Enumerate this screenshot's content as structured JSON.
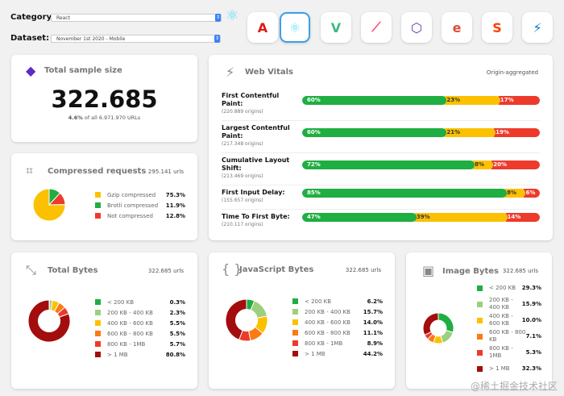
{
  "filters": {
    "category_label": "Category:",
    "category_value": "React",
    "dataset_label": "Dataset:",
    "dataset_value": "November 1st 2020 - Mobile"
  },
  "frameworks": [
    {
      "name": "Angular",
      "glyph": "A",
      "color": "#dd1b16"
    },
    {
      "name": "React",
      "glyph": "⚛",
      "color": "#61dafb",
      "selected": true
    },
    {
      "name": "Vue",
      "glyph": "V",
      "color": "#41b883"
    },
    {
      "name": "Polymer",
      "glyph": "⟋",
      "color": "#ff4470"
    },
    {
      "name": "Preact",
      "glyph": "⬡",
      "color": "#673ab8"
    },
    {
      "name": "Ember",
      "glyph": "e",
      "color": "#e04e39"
    },
    {
      "name": "Svelte",
      "glyph": "S",
      "color": "#ff3e00"
    },
    {
      "name": "AMP",
      "glyph": "⚡",
      "color": "#0379c4"
    }
  ],
  "sample": {
    "title": "Total sample size",
    "value": "322.685",
    "pct": "4.6%",
    "sub": "of all 6.971.970 URLs"
  },
  "vitals": {
    "title": "Web Vitals",
    "note": "Origin-aggregated",
    "colors": [
      "#1fae42",
      "#fbc100",
      "#ee3a2b"
    ],
    "rows": [
      {
        "name": "First Contentful Paint:",
        "origins": "(220.889 origins)",
        "values": [
          60,
          23,
          17
        ]
      },
      {
        "name": "Largest Contentful Paint:",
        "origins": "(217.348 origins)",
        "values": [
          60,
          21,
          19
        ]
      },
      {
        "name": "Cumulative Layout Shift:",
        "origins": "(213.469 origins)",
        "values": [
          72,
          8,
          20
        ]
      },
      {
        "name": "First Input Delay:",
        "origins": "(155.657 origins)",
        "values": [
          85,
          8,
          6
        ]
      },
      {
        "name": "Time To First Byte:",
        "origins": "(210.117 origins)",
        "values": [
          47,
          39,
          14
        ]
      }
    ]
  },
  "compressed": {
    "title": "Compressed requests",
    "count": "295.141 urls",
    "items": [
      {
        "label": "Gzip compressed",
        "value": "75.3%",
        "pct": 75.3,
        "color": "#fbc100"
      },
      {
        "label": "Brotli compressed",
        "value": "11.9%",
        "pct": 11.9,
        "color": "#1fae42"
      },
      {
        "label": "Not compressed",
        "value": "12.8%",
        "pct": 12.8,
        "color": "#ee3a2b"
      }
    ]
  },
  "size_colors": [
    "#1fae42",
    "#9ccf7e",
    "#fbc100",
    "#fb7a12",
    "#ee3a2b",
    "#a40d0d"
  ],
  "total_bytes": {
    "title": "Total Bytes",
    "count": "322.685 urls",
    "items": [
      {
        "label": "< 200 KB",
        "value": "0.3%",
        "pct": 0.3
      },
      {
        "label": "200 KB - 400 KB",
        "value": "2.3%",
        "pct": 2.3
      },
      {
        "label": "400 KB - 600 KB",
        "value": "5.5%",
        "pct": 5.5
      },
      {
        "label": "600 KB - 800 KB",
        "value": "5.5%",
        "pct": 5.5
      },
      {
        "label": "800 KB - 1MB",
        "value": "5.7%",
        "pct": 5.7
      },
      {
        "label": "> 1 MB",
        "value": "80.8%",
        "pct": 80.8
      }
    ]
  },
  "js_bytes": {
    "title": "JavaScript Bytes",
    "count": "322.685 urls",
    "items": [
      {
        "label": "< 200 KB",
        "value": "6.2%",
        "pct": 6.2
      },
      {
        "label": "200 KB - 400 KB",
        "value": "15.7%",
        "pct": 15.7
      },
      {
        "label": "400 KB - 600 KB",
        "value": "14.0%",
        "pct": 14.0
      },
      {
        "label": "600 KB - 800 KB",
        "value": "11.1%",
        "pct": 11.1
      },
      {
        "label": "800 KB - 1MB",
        "value": "8.9%",
        "pct": 8.9
      },
      {
        "label": "> 1 MB",
        "value": "44.2%",
        "pct": 44.2
      }
    ]
  },
  "image_bytes": {
    "title": "Image Bytes",
    "count": "322.685 urls",
    "items": [
      {
        "label": "< 200 KB",
        "value": "29.3%",
        "pct": 29.3
      },
      {
        "label": "200 KB - 400 KB",
        "value": "15.9%",
        "pct": 15.9
      },
      {
        "label": "400 KB - 600 KB",
        "value": "10.0%",
        "pct": 10.0
      },
      {
        "label": "600 KB - 800 KB",
        "value": "7.1%",
        "pct": 7.1
      },
      {
        "label": "800 KB - 1MB",
        "value": "5.3%",
        "pct": 5.3
      },
      {
        "label": "> 1 MB",
        "value": "32.3%",
        "pct": 32.3
      }
    ]
  },
  "watermark": "@稀土掘金技术社区"
}
